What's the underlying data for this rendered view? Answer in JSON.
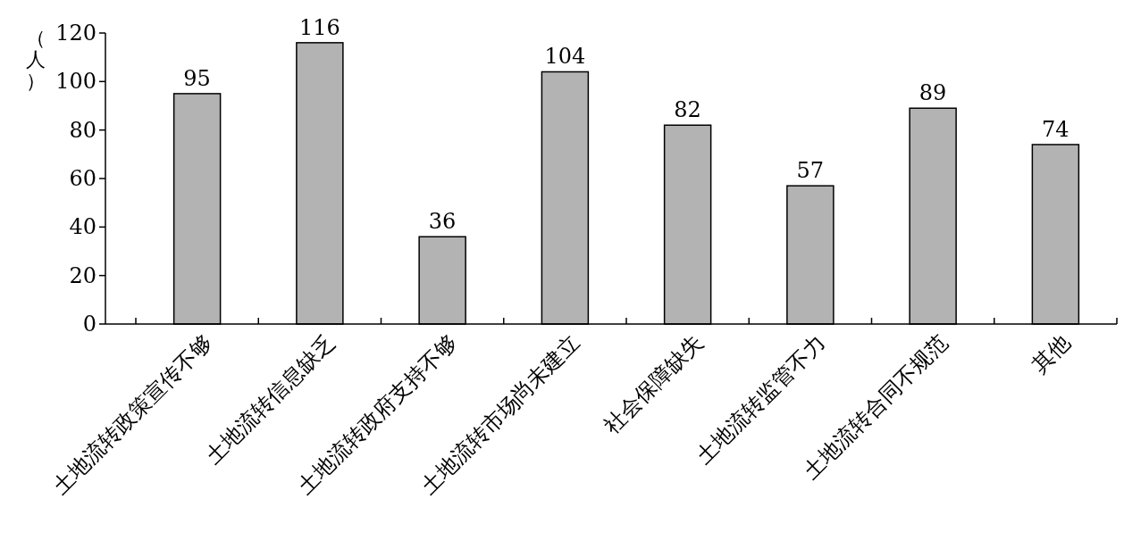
{
  "chart_data": {
    "type": "bar",
    "ylabel": "（人）",
    "categories": [
      "土地流转政策宣传不够",
      "土地流转信息缺乏",
      "土地流转政府支持不够",
      "土地流转市场尚未建立",
      "社会保障缺失",
      "土地流转监管不力",
      "土地流转合同不规范",
      "其他"
    ],
    "values": [
      95,
      116,
      36,
      104,
      82,
      57,
      89,
      74
    ],
    "color": "#b3b3b3",
    "ylim": [
      0,
      120
    ],
    "yticks": [
      0,
      20,
      40,
      60,
      80,
      100,
      120
    ],
    "data_labels": true
  }
}
